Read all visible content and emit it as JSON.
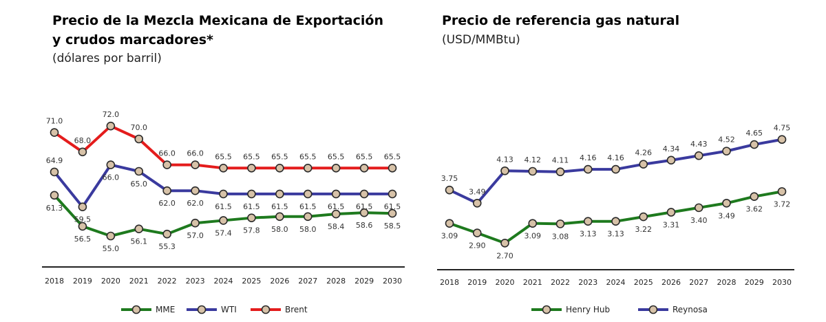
{
  "left": {
    "title_line1": "Precio de la Mezcla Mexicana de Exportación",
    "title_line2": "y crudos marcadores*",
    "subtitle": "(dólares por barril)"
  },
  "right": {
    "title": "Precio de referencia gas natural",
    "subtitle": "(USD/MMBtu)"
  },
  "chart_data": [
    {
      "type": "line",
      "title": "Precio de la Mezcla Mexicana de Exportación y crudos marcadores*",
      "subtitle": "(dólares por barril)",
      "x": [
        "2018",
        "2019",
        "2020",
        "2021",
        "2022",
        "2023",
        "2024",
        "2025",
        "2026",
        "2027",
        "2028",
        "2029",
        "2030"
      ],
      "ylim": [
        50,
        75
      ],
      "grid": false,
      "legend": "bottom",
      "series": [
        {
          "name": "MME",
          "color": "#1e7a1e",
          "values": [
            61.3,
            56.5,
            55.0,
            56.1,
            55.3,
            57.0,
            57.4,
            57.8,
            58.0,
            58.0,
            58.4,
            58.6,
            58.5
          ],
          "labels": [
            "61.3",
            "56.5",
            "55.0",
            "56.1",
            "55.3",
            "57.0",
            "57.4",
            "57.8",
            "58.0",
            "58.0",
            "58.4",
            "58.6",
            "58.5"
          ]
        },
        {
          "name": "WTI",
          "color": "#3a3a9e",
          "values": [
            64.9,
            59.5,
            66.0,
            65.0,
            62.0,
            62.0,
            61.5,
            61.5,
            61.5,
            61.5,
            61.5,
            61.5,
            61.5
          ],
          "labels": [
            "64.9",
            "59.5",
            "66.0",
            "65.0",
            "62.0",
            "62.0",
            "61.5",
            "61.5",
            "61.5",
            "61.5",
            "61.5",
            "61.5",
            "61.5"
          ]
        },
        {
          "name": "Brent",
          "color": "#e41c1c",
          "values": [
            71.0,
            68.0,
            72.0,
            70.0,
            66.0,
            66.0,
            65.5,
            65.5,
            65.5,
            65.5,
            65.5,
            65.5,
            65.5
          ],
          "labels": [
            "71.0",
            "68.0",
            "72.0",
            "70.0",
            "66.0",
            "66.0",
            "65.5",
            "65.5",
            "65.5",
            "65.5",
            "65.5",
            "65.5",
            "65.5"
          ]
        }
      ]
    },
    {
      "type": "line",
      "title": "Precio de referencia gas natural",
      "subtitle": "(USD/MMBtu)",
      "x": [
        "2018",
        "2019",
        "2020",
        "2021",
        "2022",
        "2023",
        "2024",
        "2025",
        "2026",
        "2027",
        "2028",
        "2029",
        "2030"
      ],
      "ylim": [
        2.2,
        5.4
      ],
      "grid": false,
      "legend": "bottom",
      "series": [
        {
          "name": "Henry Hub",
          "color": "#1e7a1e",
          "values": [
            3.09,
            2.9,
            2.7,
            3.09,
            3.08,
            3.13,
            3.13,
            3.22,
            3.31,
            3.4,
            3.49,
            3.62,
            3.72
          ],
          "labels": [
            "3.09",
            "2.90",
            "2.70",
            "3.09",
            "3.08",
            "3.13",
            "3.13",
            "3.22",
            "3.31",
            "3.40",
            "3.49",
            "3.62",
            "3.72"
          ]
        },
        {
          "name": "Reynosa",
          "color": "#3a3a9e",
          "values": [
            3.75,
            3.49,
            4.13,
            4.12,
            4.11,
            4.16,
            4.16,
            4.26,
            4.34,
            4.43,
            4.52,
            4.65,
            4.75
          ],
          "labels": [
            "3.75",
            "3.49",
            "4.13",
            "4.12",
            "4.11",
            "4.16",
            "4.16",
            "4.26",
            "4.34",
            "4.43",
            "4.52",
            "4.65",
            "4.75"
          ]
        }
      ]
    }
  ]
}
